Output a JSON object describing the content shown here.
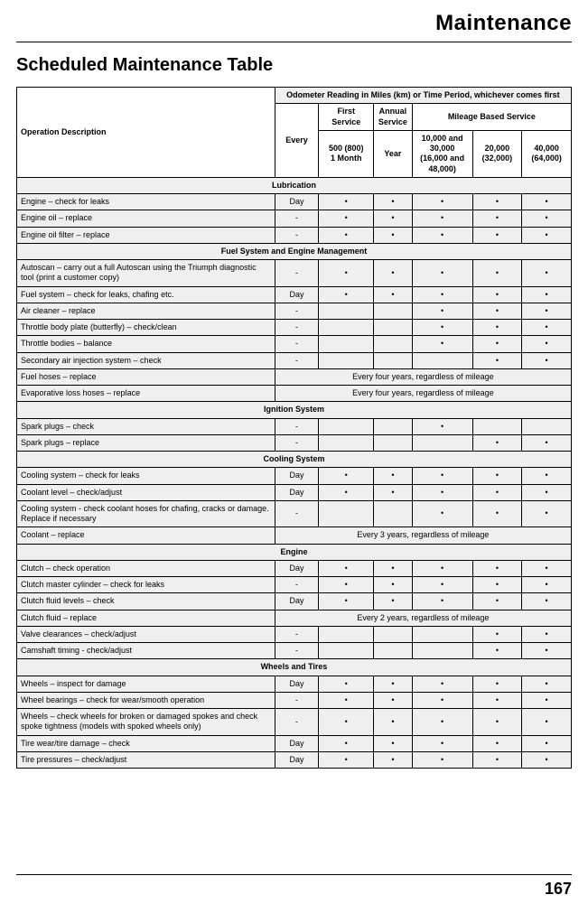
{
  "header": {
    "section": "Maintenance",
    "title": "Scheduled Maintenance Table"
  },
  "table": {
    "head": {
      "op_desc": "Operation Description",
      "odo": "Odometer Reading in Miles (km) or Time Period, whichever comes first",
      "first_service": "First Service",
      "annual_service": "Annual Service",
      "mileage_based": "Mileage Based Service",
      "every": "Every",
      "col_500_l1": "500 (800)",
      "col_500_l2": "1 Month",
      "col_year": "Year",
      "col_10k_l1": "10,000 and 30,000",
      "col_10k_l2": "(16,000 and 48,000)",
      "col_20k_l1": "20,000",
      "col_20k_l2": "(32,000)",
      "col_40k_l1": "40,000",
      "col_40k_l2": "(64,000)"
    },
    "sections": [
      {
        "title": "Lubrication",
        "rows": [
          {
            "desc": "Engine – check for leaks",
            "every": "Day",
            "c": [
              "•",
              "•",
              "•",
              "•",
              "•"
            ]
          },
          {
            "desc": "Engine oil – replace",
            "every": "-",
            "c": [
              "•",
              "•",
              "•",
              "•",
              "•"
            ]
          },
          {
            "desc": "Engine oil filter – replace",
            "every": "-",
            "c": [
              "•",
              "•",
              "•",
              "•",
              "•"
            ]
          }
        ]
      },
      {
        "title": "Fuel System and Engine Management",
        "rows": [
          {
            "desc": "Autoscan – carry out a full Autoscan using the Triumph diagnostic tool (print a customer copy)",
            "every": "-",
            "c": [
              "•",
              "•",
              "•",
              "•",
              "•"
            ]
          },
          {
            "desc": "Fuel system – check for leaks, chafing etc.",
            "every": "Day",
            "c": [
              "•",
              "•",
              "•",
              "•",
              "•"
            ]
          },
          {
            "desc": "Air cleaner – replace",
            "every": "-",
            "c": [
              "",
              "",
              "•",
              "•",
              "•"
            ]
          },
          {
            "desc": "Throttle body plate (butterfly) – check/clean",
            "every": "-",
            "c": [
              "",
              "",
              "•",
              "•",
              "•"
            ]
          },
          {
            "desc": "Throttle bodies – balance",
            "every": "-",
            "c": [
              "",
              "",
              "•",
              "•",
              "•"
            ]
          },
          {
            "desc": "Secondary air injection system – check",
            "every": "-",
            "c": [
              "",
              "",
              "",
              "•",
              "•"
            ]
          },
          {
            "desc": "Fuel hoses – replace",
            "span": "Every four years, regardless of mileage"
          },
          {
            "desc": "Evaporative loss hoses – replace",
            "span": "Every four years, regardless of mileage"
          }
        ]
      },
      {
        "title": "Ignition System",
        "rows": [
          {
            "desc": "Spark plugs – check",
            "every": "-",
            "c": [
              "",
              "",
              "•",
              "",
              ""
            ]
          },
          {
            "desc": "Spark plugs – replace",
            "every": "-",
            "c": [
              "",
              "",
              "",
              "•",
              "•"
            ]
          }
        ]
      },
      {
        "title": "Cooling System",
        "rows": [
          {
            "desc": "Cooling system – check for leaks",
            "every": "Day",
            "c": [
              "•",
              "•",
              "•",
              "•",
              "•"
            ]
          },
          {
            "desc": "Coolant level – check/adjust",
            "every": "Day",
            "c": [
              "•",
              "•",
              "•",
              "•",
              "•"
            ]
          },
          {
            "desc": "Cooling system - check coolant hoses for chafing, cracks or damage. Replace if necessary",
            "every": "-",
            "c": [
              "",
              "",
              "•",
              "•",
              "•"
            ]
          },
          {
            "desc": "Coolant – replace",
            "span": "Every 3 years, regardless of mileage"
          }
        ]
      },
      {
        "title": "Engine",
        "rows": [
          {
            "desc": "Clutch – check operation",
            "every": "Day",
            "c": [
              "•",
              "•",
              "•",
              "•",
              "•"
            ]
          },
          {
            "desc": "Clutch master cylinder – check for leaks",
            "every": "-",
            "c": [
              "•",
              "•",
              "•",
              "•",
              "•"
            ]
          },
          {
            "desc": "Clutch fluid levels – check",
            "every": "Day",
            "c": [
              "•",
              "•",
              "•",
              "•",
              "•"
            ]
          },
          {
            "desc": "Clutch fluid – replace",
            "span": "Every 2 years, regardless of mileage"
          },
          {
            "desc": "Valve clearances – check/adjust",
            "every": "-",
            "c": [
              "",
              "",
              "",
              "•",
              "•"
            ]
          },
          {
            "desc": "Camshaft timing - check/adjust",
            "every": "-",
            "c": [
              "",
              "",
              "",
              "•",
              "•"
            ]
          }
        ]
      },
      {
        "title": "Wheels and Tires",
        "rows": [
          {
            "desc": "Wheels – inspect for damage",
            "every": "Day",
            "c": [
              "•",
              "•",
              "•",
              "•",
              "•"
            ]
          },
          {
            "desc": "Wheel bearings – check for wear/smooth operation",
            "every": "-",
            "c": [
              "•",
              "•",
              "•",
              "•",
              "•"
            ]
          },
          {
            "desc": "Wheels – check wheels for broken or damaged spokes and check spoke tightness (models with spoked wheels only)",
            "every": "-",
            "c": [
              "•",
              "•",
              "•",
              "•",
              "•"
            ]
          },
          {
            "desc": "Tire wear/tire damage – check",
            "every": "Day",
            "c": [
              "•",
              "•",
              "•",
              "•",
              "•"
            ]
          },
          {
            "desc": "Tire pressures – check/adjust",
            "every": "Day",
            "c": [
              "•",
              "•",
              "•",
              "•",
              "•"
            ]
          }
        ]
      }
    ]
  },
  "footer": {
    "page": "167"
  }
}
